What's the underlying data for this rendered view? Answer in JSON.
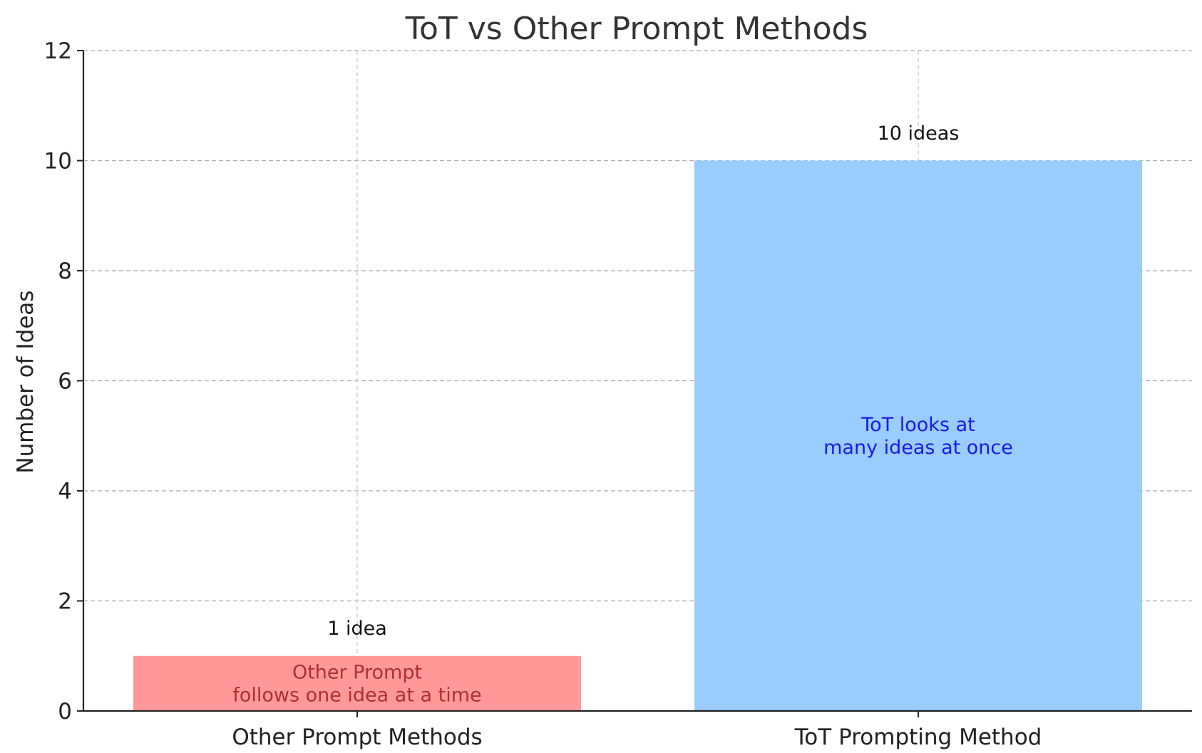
{
  "chart_data": {
    "type": "bar",
    "title": "ToT vs Other Prompt Methods",
    "xlabel": "",
    "ylabel": "Number of Ideas",
    "categories": [
      "Other Prompt Methods",
      "ToT Prompting Method"
    ],
    "values": [
      1,
      10
    ],
    "ylim": [
      0,
      12
    ],
    "yticks": [
      0,
      2,
      4,
      6,
      8,
      10,
      12
    ],
    "grid": true,
    "colors": [
      "#ff9999",
      "#99ccff"
    ],
    "value_labels": [
      "1 idea",
      "10 ideas"
    ],
    "annotations": [
      {
        "lines": [
          "Other Prompt",
          "follows one idea at a time"
        ],
        "color": "#b03030"
      },
      {
        "lines": [
          "ToT looks at",
          "many ideas at once"
        ],
        "color": "#1a1ae6"
      }
    ]
  }
}
